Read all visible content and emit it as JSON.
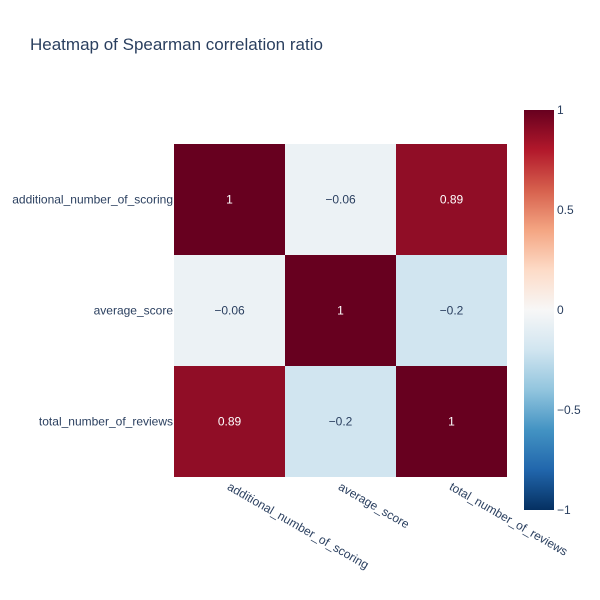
{
  "chart_data": {
    "type": "heatmap",
    "title": "Heatmap of Spearman correlation ratio",
    "x_categories": [
      "additional_number_of_scoring",
      "average_score",
      "total_number_of_reviews"
    ],
    "y_categories": [
      "additional_number_of_scoring",
      "average_score",
      "total_number_of_reviews"
    ],
    "z": [
      [
        1,
        -0.06,
        0.89
      ],
      [
        -0.06,
        1,
        -0.2
      ],
      [
        0.89,
        -0.2,
        1
      ]
    ],
    "cell_labels": [
      [
        "1",
        "−0.06",
        "0.89"
      ],
      [
        "−0.06",
        "1",
        "−0.2"
      ],
      [
        "0.89",
        "−0.2",
        "1"
      ]
    ],
    "colorscale": "RdBu (reversed)",
    "zmin": -1,
    "zmax": 1,
    "colorbar": {
      "tick_values": [
        1,
        0.5,
        0,
        -0.5,
        -1
      ],
      "tick_labels": [
        "1",
        "0.5",
        "0",
        "−0.5",
        "−1"
      ]
    },
    "colors": {
      "title": "#2a3f5f",
      "tick": "#2a3f5f",
      "scale_stops": [
        "#053061",
        "#2166ac",
        "#4393c3",
        "#92c5de",
        "#d1e5f0",
        "#f7f7f7",
        "#fddbc7",
        "#f4a582",
        "#d6604d",
        "#b2182b",
        "#67001f"
      ]
    }
  }
}
